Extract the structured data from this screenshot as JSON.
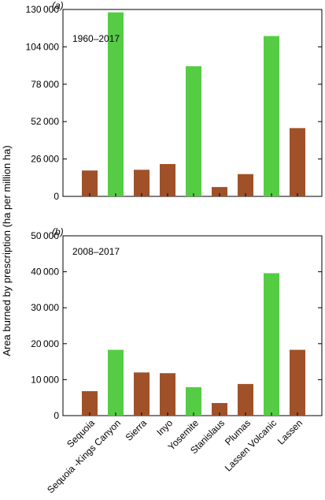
{
  "colors": {
    "national_park": "#55cc44",
    "national_forest": "#a0512a",
    "axis": "#000000",
    "background": "#ffffff"
  },
  "figure": {
    "ylabel": "Area burned by prescription (ha per million ha)"
  },
  "chart_data": [
    {
      "type": "bar",
      "panel_label": "(a)",
      "period_label": "1960–2017",
      "categories": [
        "Sequoia",
        "Sequoia-Kings Canyon",
        "Sierra",
        "Inyo",
        "Yosemite",
        "Stanislaus",
        "Plumas",
        "Lassen Volcanic",
        "Lassen"
      ],
      "values": [
        18000,
        128000,
        18500,
        22500,
        90500,
        6500,
        15500,
        111500,
        47500
      ],
      "bar_colors": [
        "national_forest",
        "national_park",
        "national_forest",
        "national_forest",
        "national_park",
        "national_forest",
        "national_forest",
        "national_park",
        "national_forest"
      ],
      "yticks": [
        0,
        26000,
        52000,
        78000,
        104000,
        130000
      ],
      "ytick_labels": [
        "0",
        "26 000",
        "52 000",
        "78 000",
        "104 000",
        "130 000"
      ],
      "ylim": [
        0,
        130000
      ],
      "grid": false,
      "xlabel": "",
      "title": ""
    },
    {
      "type": "bar",
      "panel_label": "(b)",
      "period_label": "2008–2017",
      "categories": [
        "Sequoia",
        "Sequoia -Kings Canyon",
        "Sierra",
        "Inyo",
        "Yosemite",
        "Stanislaus",
        "Plumas",
        "Lassen Volcanic",
        "Lassen"
      ],
      "values": [
        6800,
        18300,
        12000,
        11800,
        7900,
        3500,
        8800,
        39600,
        18300
      ],
      "bar_colors": [
        "national_forest",
        "national_park",
        "national_forest",
        "national_forest",
        "national_park",
        "national_forest",
        "national_forest",
        "national_park",
        "national_forest"
      ],
      "yticks": [
        0,
        10000,
        20000,
        30000,
        40000,
        50000
      ],
      "ytick_labels": [
        "0",
        "10 000",
        "20 000",
        "30 000",
        "40 000",
        "50 000"
      ],
      "ylim": [
        0,
        50000
      ],
      "grid": false,
      "xlabel": "",
      "title": ""
    }
  ]
}
